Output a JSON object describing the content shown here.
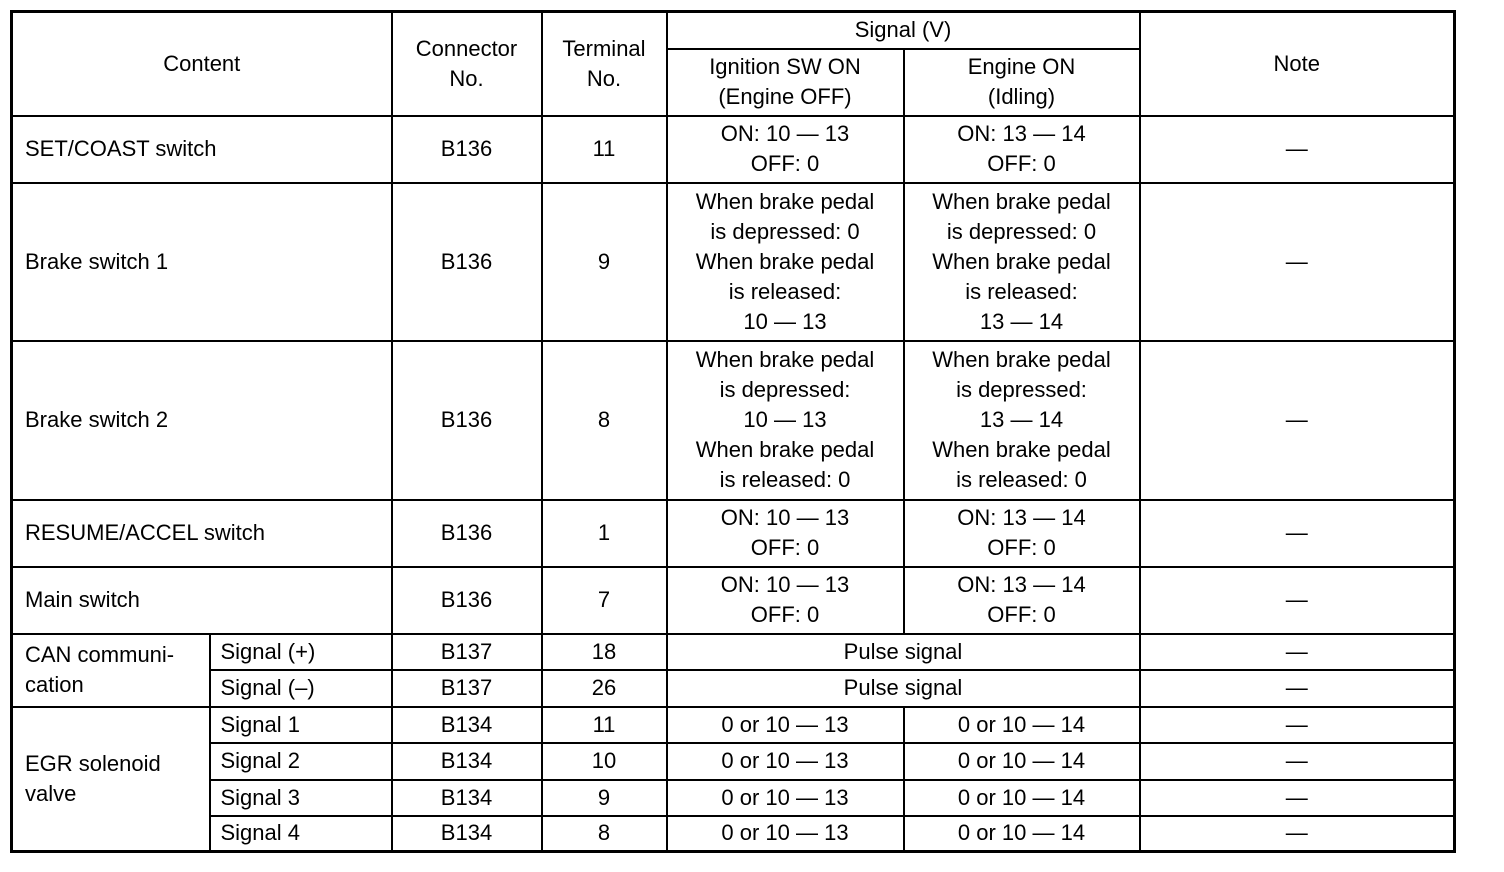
{
  "header": {
    "content": "Content",
    "connector": "Connector\nNo.",
    "terminal": "Terminal\nNo.",
    "signal": "Signal (V)",
    "ign": "Ignition SW ON\n(Engine OFF)",
    "eng": "Engine ON\n(Idling)",
    "note": "Note"
  },
  "rows": [
    {
      "content": "SET/COAST switch",
      "connector": "B136",
      "terminal": "11",
      "ign": "ON: 10 — 13\nOFF: 0",
      "eng": "ON: 13 — 14\nOFF: 0",
      "note": "—"
    },
    {
      "content": "Brake switch 1",
      "connector": "B136",
      "terminal": "9",
      "ign": "When brake pedal\nis depressed: 0\nWhen brake pedal\nis released:\n10 — 13",
      "eng": "When brake pedal\nis depressed: 0\nWhen brake pedal\nis released:\n13 — 14",
      "note": "—"
    },
    {
      "content": "Brake switch 2",
      "connector": "B136",
      "terminal": "8",
      "ign": "When brake pedal\nis depressed:\n10 — 13\nWhen brake pedal\nis released: 0",
      "eng": "When brake pedal\nis depressed:\n13 — 14\nWhen brake pedal\nis released: 0",
      "note": "—"
    },
    {
      "content": "RESUME/ACCEL switch",
      "connector": "B136",
      "terminal": "1",
      "ign": "ON: 10 — 13\nOFF: 0",
      "eng": "ON: 13 — 14\nOFF: 0",
      "note": "—"
    },
    {
      "content": "Main switch",
      "connector": "B136",
      "terminal": "7",
      "ign": "ON: 10 — 13\nOFF: 0",
      "eng": "ON: 13 — 14\nOFF: 0",
      "note": "—"
    }
  ],
  "can": {
    "group": "CAN communi-\ncation",
    "rows": [
      {
        "sub": "Signal (+)",
        "connector": "B137",
        "terminal": "18",
        "signal": "Pulse signal",
        "note": "—"
      },
      {
        "sub": "Signal (–)",
        "connector": "B137",
        "terminal": "26",
        "signal": "Pulse signal",
        "note": "—"
      }
    ]
  },
  "egr": {
    "group": "EGR solenoid\nvalve",
    "rows": [
      {
        "sub": "Signal 1",
        "connector": "B134",
        "terminal": "11",
        "ign": "0 or 10 — 13",
        "eng": "0 or 10 — 14",
        "note": "—"
      },
      {
        "sub": "Signal 2",
        "connector": "B134",
        "terminal": "10",
        "ign": "0 or 10 — 13",
        "eng": "0 or 10 — 14",
        "note": "—"
      },
      {
        "sub": "Signal 3",
        "connector": "B134",
        "terminal": "9",
        "ign": "0 or 10 — 13",
        "eng": "0 or 10 — 14",
        "note": "—"
      },
      {
        "sub": "Signal 4",
        "connector": "B134",
        "terminal": "8",
        "ign": "0 or 10 — 13",
        "eng": "0 or 10 — 14",
        "note": "—"
      }
    ]
  }
}
